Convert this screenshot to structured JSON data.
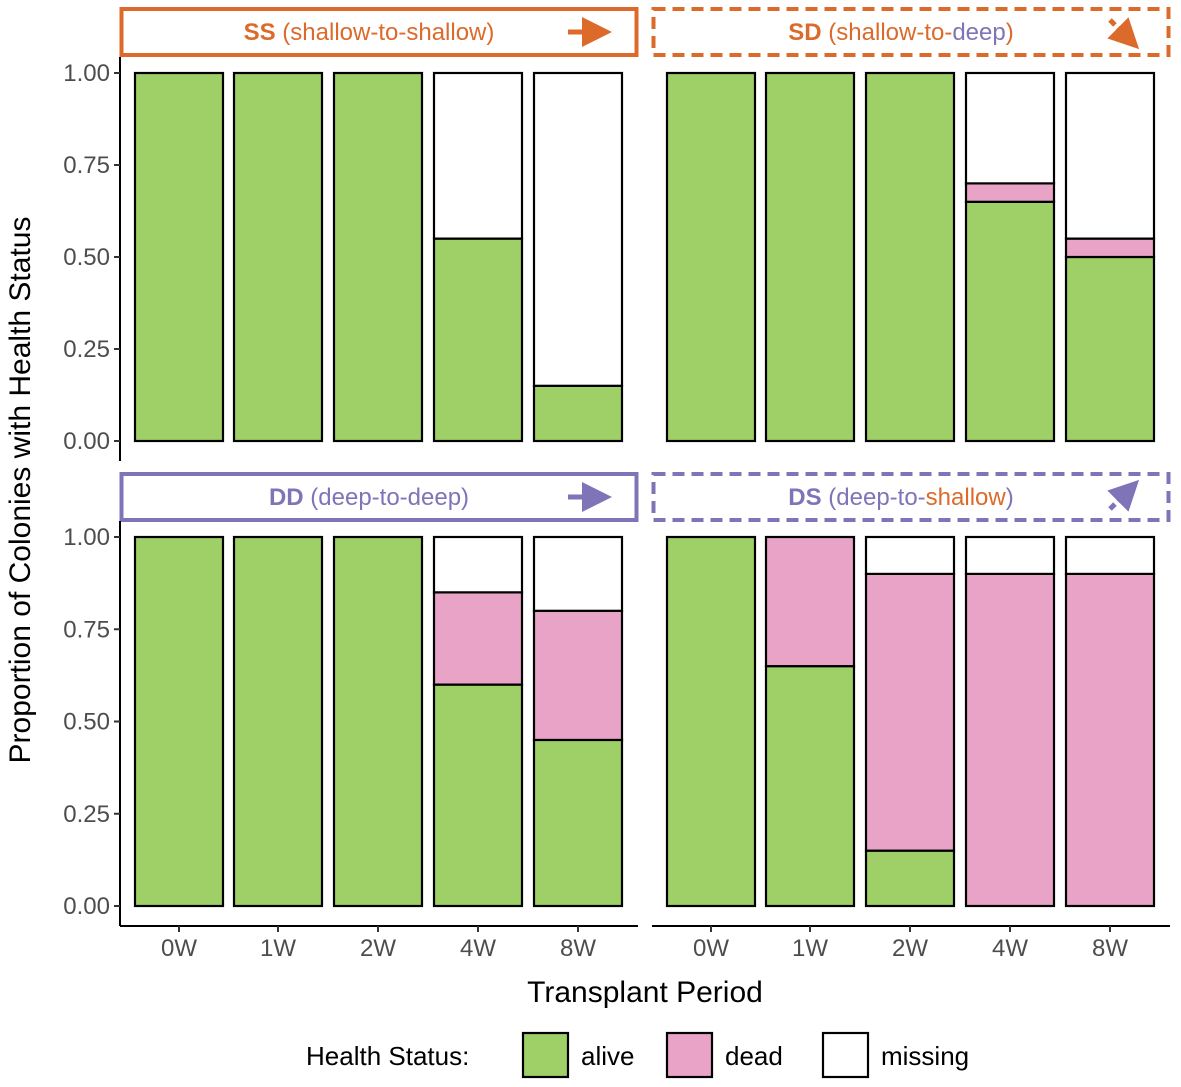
{
  "chart_data": {
    "type": "bar",
    "stacked": true,
    "ylabel": "Proportion of Colonies with Health Status",
    "xlabel": "Transplant Period",
    "categories": [
      "0W",
      "1W",
      "2W",
      "4W",
      "8W"
    ],
    "y_ticks": [
      "0.00",
      "0.25",
      "0.50",
      "0.75",
      "1.00"
    ],
    "ylim": [
      0,
      1
    ],
    "status_order": [
      "alive",
      "dead",
      "missing"
    ],
    "colors": {
      "alive": "#9fcf67",
      "dead": "#e8a3c7",
      "missing": "#ffffff",
      "shallow": "#dc6a2a",
      "deep": "#7f74b8",
      "outline": "#000000"
    },
    "legend": {
      "title": "Health Status:",
      "placement": "bottom",
      "items": [
        {
          "key": "alive",
          "label": "alive"
        },
        {
          "key": "dead",
          "label": "dead"
        },
        {
          "key": "missing",
          "label": "missing"
        }
      ]
    },
    "panels": [
      {
        "code": "SS",
        "code_color": "shallow",
        "parts": [
          {
            "text": "(shallow-to-shallow)",
            "color": "shallow"
          }
        ],
        "border": "solid",
        "border_color": "shallow",
        "arrow": "right",
        "arrow_color": "shallow",
        "series": {
          "alive": [
            1.0,
            1.0,
            1.0,
            0.55,
            0.15
          ],
          "dead": [
            0,
            0,
            0,
            0,
            0
          ],
          "missing": [
            0,
            0,
            0,
            0.45,
            0.85
          ]
        }
      },
      {
        "code": "SD",
        "code_color": "shallow",
        "parts": [
          {
            "text": "(shallow-to-",
            "color": "shallow"
          },
          {
            "text": "deep",
            "color": "deep"
          },
          {
            "text": ")",
            "color": "shallow"
          }
        ],
        "border": "dashed",
        "border_color": "shallow",
        "arrow": "down-right",
        "arrow_color": "shallow",
        "series": {
          "alive": [
            1.0,
            1.0,
            1.0,
            0.65,
            0.5
          ],
          "dead": [
            0,
            0,
            0,
            0.05,
            0.05
          ],
          "missing": [
            0,
            0,
            0,
            0.3,
            0.45
          ]
        }
      },
      {
        "code": "DD",
        "code_color": "deep",
        "parts": [
          {
            "text": "(deep-to-deep)",
            "color": "deep"
          }
        ],
        "border": "solid",
        "border_color": "deep",
        "arrow": "right",
        "arrow_color": "deep",
        "series": {
          "alive": [
            1.0,
            1.0,
            1.0,
            0.6,
            0.45
          ],
          "dead": [
            0,
            0,
            0,
            0.25,
            0.35
          ],
          "missing": [
            0,
            0,
            0,
            0.15,
            0.2
          ]
        }
      },
      {
        "code": "DS",
        "code_color": "deep",
        "parts": [
          {
            "text": "(deep-to-",
            "color": "deep"
          },
          {
            "text": "shallow",
            "color": "shallow"
          },
          {
            "text": ")",
            "color": "deep"
          }
        ],
        "border": "dashed",
        "border_color": "deep",
        "arrow": "up-right",
        "arrow_color": "deep",
        "series": {
          "alive": [
            1.0,
            0.65,
            0.15,
            0.0,
            0.0
          ],
          "dead": [
            0,
            0.35,
            0.75,
            0.9,
            0.9
          ],
          "missing": [
            0,
            0,
            0.1,
            0.1,
            0.1
          ]
        }
      }
    ]
  }
}
